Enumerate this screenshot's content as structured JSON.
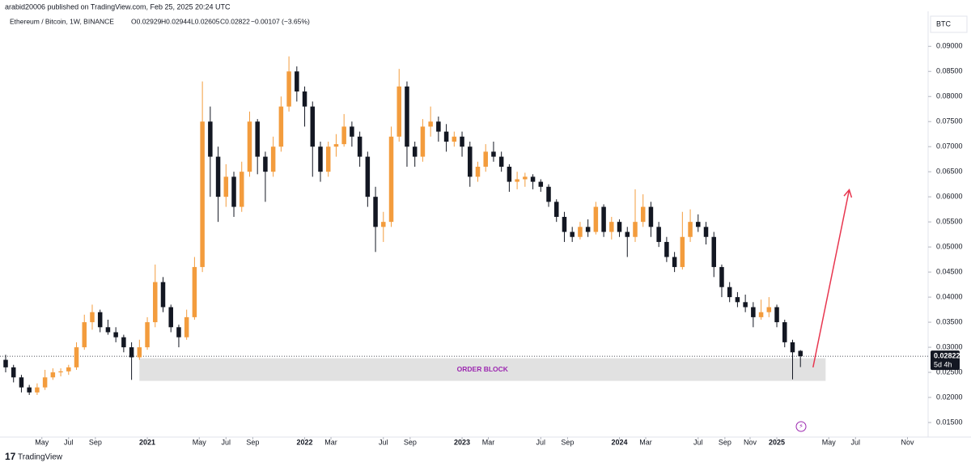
{
  "header": {
    "publisher": "arabid20006 published on TradingView.com, Feb 25, 2025 20:24 UTC",
    "symbol": "Ethereum / Bitcoin, 1W, BINANCE",
    "open": "O0.02929",
    "high": "H0.02944",
    "low": "L0.02605",
    "close": "C0.02822",
    "change": "−0.00107 (−3.65%)"
  },
  "footer": {
    "brand": "TradingView"
  },
  "chart_data": {
    "type": "candlestick",
    "currency": "BTC",
    "up_color": "#f39c3d",
    "down_color": "#131722",
    "xlim": [
      2020.064,
      2025.951
    ],
    "ylim": [
      0.0121,
      0.0944
    ],
    "xticks": [
      {
        "value": 2020.33,
        "label": "May"
      },
      {
        "value": 2020.5,
        "label": "Jul"
      },
      {
        "value": 2020.67,
        "label": "Sep"
      },
      {
        "value": 2021,
        "label": "2021"
      },
      {
        "value": 2021.33,
        "label": "May"
      },
      {
        "value": 2021.5,
        "label": "Jul"
      },
      {
        "value": 2021.67,
        "label": "Sep"
      },
      {
        "value": 2022,
        "label": "2022"
      },
      {
        "value": 2022.167,
        "label": "Mar"
      },
      {
        "value": 2022.5,
        "label": "Jul"
      },
      {
        "value": 2022.67,
        "label": "Sep"
      },
      {
        "value": 2023,
        "label": "2023"
      },
      {
        "value": 2023.167,
        "label": "Mar"
      },
      {
        "value": 2023.5,
        "label": "Jul"
      },
      {
        "value": 2023.67,
        "label": "Sep"
      },
      {
        "value": 2024,
        "label": "2024"
      },
      {
        "value": 2024.167,
        "label": "Mar"
      },
      {
        "value": 2024.5,
        "label": "Jul"
      },
      {
        "value": 2024.67,
        "label": "Sep"
      },
      {
        "value": 2024.83,
        "label": "Nov"
      },
      {
        "value": 2025,
        "label": "2025"
      },
      {
        "value": 2025.33,
        "label": "May"
      },
      {
        "value": 2025.5,
        "label": "Jul"
      },
      {
        "value": 2025.83,
        "label": "Nov"
      }
    ],
    "yticks": [
      {
        "value": 0.015,
        "label": "0.01500"
      },
      {
        "value": 0.02,
        "label": "0.02000"
      },
      {
        "value": 0.025,
        "label": "0.02500"
      },
      {
        "value": 0.03,
        "label": "0.03000"
      },
      {
        "value": 0.035,
        "label": "0.03500"
      },
      {
        "value": 0.04,
        "label": "0.04000"
      },
      {
        "value": 0.045,
        "label": "0.04500"
      },
      {
        "value": 0.05,
        "label": "0.05000"
      },
      {
        "value": 0.055,
        "label": "0.05500"
      },
      {
        "value": 0.06,
        "label": "0.06000"
      },
      {
        "value": 0.065,
        "label": "0.06500"
      },
      {
        "value": 0.07,
        "label": "0.07000"
      },
      {
        "value": 0.075,
        "label": "0.07500"
      },
      {
        "value": 0.08,
        "label": "0.08000"
      },
      {
        "value": 0.085,
        "label": "0.08500"
      },
      {
        "value": 0.09,
        "label": "0.09000"
      }
    ],
    "last_price": 0.02822,
    "countdown": "5d 4h",
    "order_block": {
      "label": "ORDER BLOCK",
      "x": [
        2020.95,
        2025.31
      ],
      "y": [
        0.0233,
        0.0278
      ]
    },
    "arrow": {
      "x": [
        2025.23,
        2025.46
      ],
      "y": [
        0.026,
        0.0614
      ],
      "color": "#e8364f"
    },
    "x": [
      2020.1,
      2020.15,
      2020.2,
      2020.25,
      2020.3,
      2020.35,
      2020.4,
      2020.45,
      2020.5,
      2020.55,
      2020.6,
      2020.65,
      2020.7,
      2020.75,
      2020.8,
      2020.85,
      2020.9,
      2020.95,
      2021.0,
      2021.05,
      2021.1,
      2021.15,
      2021.2,
      2021.25,
      2021.3,
      2021.35,
      2021.4,
      2021.45,
      2021.5,
      2021.55,
      2021.6,
      2021.65,
      2021.7,
      2021.75,
      2021.8,
      2021.85,
      2021.9,
      2021.95,
      2022.0,
      2022.05,
      2022.1,
      2022.15,
      2022.2,
      2022.25,
      2022.3,
      2022.35,
      2022.4,
      2022.45,
      2022.5,
      2022.55,
      2022.6,
      2022.65,
      2022.7,
      2022.75,
      2022.8,
      2022.85,
      2022.9,
      2022.95,
      2023.0,
      2023.05,
      2023.1,
      2023.15,
      2023.2,
      2023.25,
      2023.3,
      2023.35,
      2023.4,
      2023.45,
      2023.5,
      2023.55,
      2023.6,
      2023.65,
      2023.7,
      2023.75,
      2023.8,
      2023.85,
      2023.9,
      2023.95,
      2024.0,
      2024.05,
      2024.1,
      2024.15,
      2024.2,
      2024.25,
      2024.3,
      2024.35,
      2024.4,
      2024.45,
      2024.5,
      2024.55,
      2024.6,
      2024.65,
      2024.7,
      2024.75,
      2024.8,
      2024.85,
      2024.9,
      2024.95,
      2025.0,
      2025.05,
      2025.1,
      2025.15
    ],
    "candles": [
      [
        0.0275,
        0.0285,
        0.025,
        0.026
      ],
      [
        0.026,
        0.0265,
        0.023,
        0.024
      ],
      [
        0.024,
        0.0245,
        0.021,
        0.022
      ],
      [
        0.022,
        0.0225,
        0.0205,
        0.021
      ],
      [
        0.021,
        0.0228,
        0.0205,
        0.022
      ],
      [
        0.022,
        0.0255,
        0.0215,
        0.024
      ],
      [
        0.024,
        0.0258,
        0.0235,
        0.025
      ],
      [
        0.025,
        0.0258,
        0.0242,
        0.0252
      ],
      [
        0.0252,
        0.0265,
        0.0245,
        0.026
      ],
      [
        0.026,
        0.031,
        0.0255,
        0.03
      ],
      [
        0.03,
        0.0365,
        0.0295,
        0.035
      ],
      [
        0.035,
        0.0385,
        0.0335,
        0.037
      ],
      [
        0.037,
        0.0375,
        0.033,
        0.034
      ],
      [
        0.034,
        0.0355,
        0.0325,
        0.033
      ],
      [
        0.033,
        0.034,
        0.031,
        0.032
      ],
      [
        0.032,
        0.0325,
        0.029,
        0.03
      ],
      [
        0.03,
        0.031,
        0.0235,
        0.028
      ],
      [
        0.028,
        0.0315,
        0.0275,
        0.03
      ],
      [
        0.03,
        0.036,
        0.0295,
        0.035
      ],
      [
        0.035,
        0.0465,
        0.034,
        0.043
      ],
      [
        0.043,
        0.044,
        0.037,
        0.038
      ],
      [
        0.038,
        0.0385,
        0.033,
        0.034
      ],
      [
        0.034,
        0.0345,
        0.03,
        0.032
      ],
      [
        0.032,
        0.0375,
        0.0315,
        0.036
      ],
      [
        0.036,
        0.048,
        0.0355,
        0.046
      ],
      [
        0.046,
        0.083,
        0.045,
        0.075
      ],
      [
        0.075,
        0.078,
        0.06,
        0.068
      ],
      [
        0.068,
        0.07,
        0.055,
        0.06
      ],
      [
        0.06,
        0.0665,
        0.058,
        0.064
      ],
      [
        0.064,
        0.065,
        0.056,
        0.058
      ],
      [
        0.058,
        0.067,
        0.057,
        0.065
      ],
      [
        0.065,
        0.077,
        0.064,
        0.075
      ],
      [
        0.075,
        0.0755,
        0.0645,
        0.068
      ],
      [
        0.068,
        0.069,
        0.059,
        0.065
      ],
      [
        0.065,
        0.072,
        0.064,
        0.07
      ],
      [
        0.07,
        0.08,
        0.069,
        0.078
      ],
      [
        0.078,
        0.088,
        0.077,
        0.085
      ],
      [
        0.085,
        0.086,
        0.079,
        0.081
      ],
      [
        0.081,
        0.082,
        0.074,
        0.078
      ],
      [
        0.078,
        0.079,
        0.064,
        0.07
      ],
      [
        0.07,
        0.071,
        0.063,
        0.065
      ],
      [
        0.065,
        0.071,
        0.064,
        0.07
      ],
      [
        0.07,
        0.0725,
        0.068,
        0.0705
      ],
      [
        0.0705,
        0.0765,
        0.07,
        0.074
      ],
      [
        0.074,
        0.075,
        0.07,
        0.072
      ],
      [
        0.072,
        0.073,
        0.066,
        0.068
      ],
      [
        0.068,
        0.069,
        0.058,
        0.06
      ],
      [
        0.06,
        0.062,
        0.049,
        0.054
      ],
      [
        0.054,
        0.057,
        0.051,
        0.055
      ],
      [
        0.055,
        0.074,
        0.054,
        0.072
      ],
      [
        0.072,
        0.0855,
        0.071,
        0.082
      ],
      [
        0.082,
        0.083,
        0.066,
        0.07
      ],
      [
        0.07,
        0.071,
        0.066,
        0.068
      ],
      [
        0.068,
        0.0755,
        0.067,
        0.074
      ],
      [
        0.074,
        0.078,
        0.072,
        0.075
      ],
      [
        0.075,
        0.076,
        0.071,
        0.073
      ],
      [
        0.073,
        0.0745,
        0.069,
        0.071
      ],
      [
        0.071,
        0.073,
        0.07,
        0.072
      ],
      [
        0.072,
        0.073,
        0.068,
        0.07
      ],
      [
        0.07,
        0.071,
        0.062,
        0.064
      ],
      [
        0.064,
        0.067,
        0.063,
        0.066
      ],
      [
        0.066,
        0.0705,
        0.065,
        0.069
      ],
      [
        0.069,
        0.071,
        0.067,
        0.068
      ],
      [
        0.068,
        0.069,
        0.065,
        0.066
      ],
      [
        0.066,
        0.0665,
        0.061,
        0.063
      ],
      [
        0.063,
        0.065,
        0.0615,
        0.0635
      ],
      [
        0.0635,
        0.0648,
        0.062,
        0.064
      ],
      [
        0.064,
        0.0645,
        0.0615,
        0.063
      ],
      [
        0.063,
        0.0635,
        0.061,
        0.062
      ],
      [
        0.062,
        0.0625,
        0.058,
        0.059
      ],
      [
        0.059,
        0.0595,
        0.055,
        0.056
      ],
      [
        0.056,
        0.057,
        0.051,
        0.053
      ],
      [
        0.053,
        0.054,
        0.051,
        0.052
      ],
      [
        0.052,
        0.055,
        0.0515,
        0.054
      ],
      [
        0.054,
        0.0555,
        0.052,
        0.053
      ],
      [
        0.053,
        0.059,
        0.0525,
        0.058
      ],
      [
        0.058,
        0.0585,
        0.052,
        0.053
      ],
      [
        0.053,
        0.056,
        0.0515,
        0.055
      ],
      [
        0.055,
        0.0555,
        0.052,
        0.053
      ],
      [
        0.053,
        0.054,
        0.048,
        0.052
      ],
      [
        0.052,
        0.0615,
        0.051,
        0.055
      ],
      [
        0.055,
        0.0605,
        0.054,
        0.058
      ],
      [
        0.058,
        0.059,
        0.052,
        0.054
      ],
      [
        0.054,
        0.055,
        0.05,
        0.051
      ],
      [
        0.051,
        0.052,
        0.047,
        0.048
      ],
      [
        0.048,
        0.049,
        0.045,
        0.046
      ],
      [
        0.046,
        0.057,
        0.0455,
        0.052
      ],
      [
        0.052,
        0.0575,
        0.051,
        0.055
      ],
      [
        0.055,
        0.0565,
        0.053,
        0.054
      ],
      [
        0.054,
        0.055,
        0.0505,
        0.052
      ],
      [
        0.052,
        0.053,
        0.044,
        0.046
      ],
      [
        0.046,
        0.0465,
        0.04,
        0.042
      ],
      [
        0.042,
        0.043,
        0.039,
        0.04
      ],
      [
        0.04,
        0.041,
        0.038,
        0.039
      ],
      [
        0.039,
        0.0405,
        0.037,
        0.038
      ],
      [
        0.038,
        0.039,
        0.034,
        0.036
      ],
      [
        0.036,
        0.0395,
        0.0355,
        0.037
      ],
      [
        0.037,
        0.04,
        0.036,
        0.038
      ],
      [
        0.038,
        0.0385,
        0.034,
        0.035
      ],
      [
        0.035,
        0.0355,
        0.03,
        0.031
      ],
      [
        0.031,
        0.0315,
        0.0236,
        0.029
      ],
      [
        0.02929,
        0.02944,
        0.02605,
        0.02822
      ]
    ]
  }
}
